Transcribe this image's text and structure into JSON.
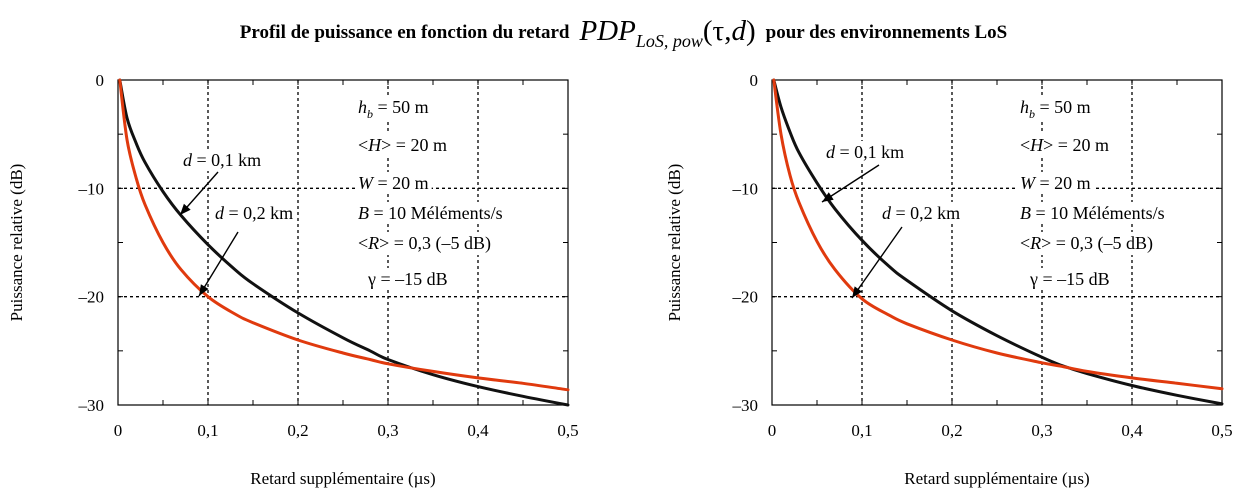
{
  "title": {
    "prefix": "Profil de puissance en fonction du retard",
    "symbol": "PDP",
    "subscript": "LoS, pow",
    "args_open": "(",
    "tau": "τ",
    "comma": ",",
    "d": "d",
    "args_close": ")",
    "suffix": "pour des environnements LoS"
  },
  "colors": {
    "series_0.1km": "#111111",
    "series_0.2km": "#e03a0e",
    "grid": "#000000"
  },
  "chart_data": [
    {
      "type": "line",
      "xlabel": "Retard supplémentaire (µs)",
      "ylabel": "Puissance relative (dB)",
      "xlim": [
        0,
        0.5
      ],
      "ylim": [
        -30,
        0
      ],
      "xticks": [
        "0",
        "0,1",
        "0,2",
        "0,3",
        "0,4",
        "0,5"
      ],
      "xtick_values": [
        0,
        0.1,
        0.2,
        0.3,
        0.4,
        0.5
      ],
      "yticks": [
        "0",
        "–10",
        "–20",
        "–30"
      ],
      "ytick_values": [
        0,
        -10,
        -20,
        -30
      ],
      "grid": true,
      "parameters": [
        "h_b = 50 m",
        "<H> = 20 m",
        "W = 20 m",
        "B = 10 Méléments/s",
        "<R> = 0,3 (–5 dB)",
        "γ = –15 dB"
      ],
      "series": [
        {
          "label": "d = 0,1 km",
          "color": "#111111",
          "x": [
            0.002,
            0.01,
            0.02,
            0.03,
            0.05,
            0.07,
            0.1,
            0.13,
            0.15,
            0.2,
            0.25,
            0.28,
            0.3,
            0.35,
            0.4,
            0.45,
            0.5
          ],
          "y": [
            0,
            -3.5,
            -5.8,
            -7.6,
            -10.3,
            -12.5,
            -15.2,
            -17.5,
            -18.8,
            -21.5,
            -23.8,
            -25.0,
            -25.8,
            -27.2,
            -28.3,
            -29.2,
            -30.0
          ]
        },
        {
          "label": "d = 0,2 km",
          "color": "#e03a0e",
          "x": [
            0.002,
            0.01,
            0.02,
            0.03,
            0.05,
            0.07,
            0.1,
            0.13,
            0.15,
            0.2,
            0.25,
            0.28,
            0.3,
            0.35,
            0.4,
            0.45,
            0.5
          ],
          "y": [
            0,
            -5.5,
            -9.0,
            -11.5,
            -15.0,
            -17.5,
            -20.0,
            -21.6,
            -22.4,
            -24.0,
            -25.2,
            -25.8,
            -26.2,
            -26.9,
            -27.5,
            -28.0,
            -28.6
          ]
        }
      ]
    },
    {
      "type": "line",
      "xlabel": "Retard supplémentaire (µs)",
      "ylabel": "Puissance relative  (dB)",
      "xlim": [
        0,
        0.5
      ],
      "ylim": [
        -30,
        0
      ],
      "xticks": [
        "0",
        "0,1",
        "0,2",
        "0,3",
        "0,4",
        "0,5"
      ],
      "xtick_values": [
        0,
        0.1,
        0.2,
        0.3,
        0.4,
        0.5
      ],
      "yticks": [
        "0",
        "–10",
        "–20",
        "–30"
      ],
      "ytick_values": [
        0,
        -10,
        -20,
        -30
      ],
      "grid": true,
      "parameters": [
        "h_b = 50 m",
        "<H> = 20 m",
        "W = 20 m",
        "B = 10 Méléments/s",
        "<R> = 0,3 (–5 dB)",
        "γ = –15 dB"
      ],
      "series": [
        {
          "label": "d = 0,1 km",
          "color": "#111111",
          "x": [
            0.002,
            0.01,
            0.02,
            0.03,
            0.05,
            0.07,
            0.1,
            0.13,
            0.15,
            0.2,
            0.25,
            0.3,
            0.32,
            0.35,
            0.4,
            0.45,
            0.5
          ],
          "y": [
            0,
            -2.5,
            -4.8,
            -6.7,
            -9.5,
            -11.9,
            -14.8,
            -17.2,
            -18.5,
            -21.3,
            -23.6,
            -25.6,
            -26.3,
            -27.1,
            -28.2,
            -29.1,
            -29.9
          ]
        },
        {
          "label": "d = 0,2 km",
          "color": "#e03a0e",
          "x": [
            0.002,
            0.01,
            0.02,
            0.03,
            0.05,
            0.07,
            0.1,
            0.13,
            0.15,
            0.2,
            0.25,
            0.3,
            0.32,
            0.35,
            0.4,
            0.45,
            0.5
          ],
          "y": [
            0,
            -5.0,
            -8.8,
            -11.3,
            -14.9,
            -17.5,
            -20.2,
            -21.7,
            -22.5,
            -24.0,
            -25.2,
            -26.1,
            -26.4,
            -26.9,
            -27.5,
            -28.0,
            -28.5
          ]
        }
      ]
    }
  ]
}
